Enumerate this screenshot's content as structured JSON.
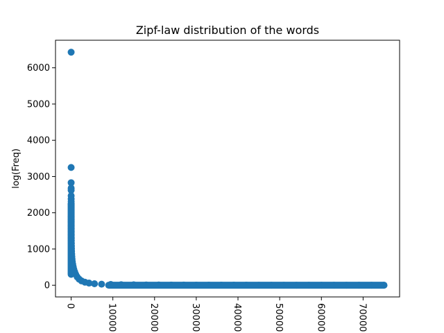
{
  "chart_data": {
    "type": "scatter",
    "title": "Zipf-law distribution of the words",
    "xlabel": "",
    "ylabel": "log(Freq)",
    "xlim": [
      -3750,
      78750
    ],
    "ylim": [
      -322,
      6760
    ],
    "xticks": [
      0,
      10000,
      20000,
      30000,
      40000,
      50000,
      60000,
      70000
    ],
    "xtick_labels": [
      "0",
      "10000",
      "20000",
      "30000",
      "40000",
      "50000",
      "60000",
      "70000"
    ],
    "xtick_rotation": 270,
    "yticks": [
      0,
      1000,
      2000,
      3000,
      4000,
      5000,
      6000
    ],
    "ytick_labels": [
      "0",
      "1000",
      "2000",
      "3000",
      "4000",
      "5000",
      "6000"
    ],
    "grid": false,
    "marker_color": "#1f77b4",
    "series": [
      {
        "x": [
          0,
          1,
          2,
          3,
          4,
          5,
          6,
          7,
          8,
          9,
          10,
          12,
          15,
          18,
          22,
          27,
          33,
          40,
          50,
          62,
          78,
          100,
          130,
          170,
          220,
          290,
          380,
          500,
          650,
          850,
          1100,
          1450,
          1900,
          2500,
          3300,
          4300,
          5600,
          7300,
          9500,
          12000,
          15000,
          18000,
          21000,
          24000,
          27000,
          30000,
          33000,
          36000,
          39000,
          42000,
          45000,
          48000,
          51000,
          54000,
          57000,
          60000,
          63000,
          66000,
          69000,
          72000,
          75000
        ],
        "y": [
          6430,
          3250,
          2830,
          2680,
          2620,
          2470,
          2380,
          2310,
          2250,
          1890,
          1820,
          1750,
          1640,
          1560,
          1480,
          1390,
          1300,
          1230,
          1160,
          1080,
          1010,
          940,
          860,
          790,
          720,
          650,
          580,
          510,
          440,
          370,
          300,
          230,
          170,
          120,
          85,
          60,
          42,
          30,
          22,
          16,
          12,
          9,
          7,
          6,
          5,
          4,
          4,
          3,
          3,
          3,
          2,
          2,
          2,
          2,
          1,
          1,
          1,
          1,
          1,
          1,
          1
        ]
      }
    ]
  }
}
